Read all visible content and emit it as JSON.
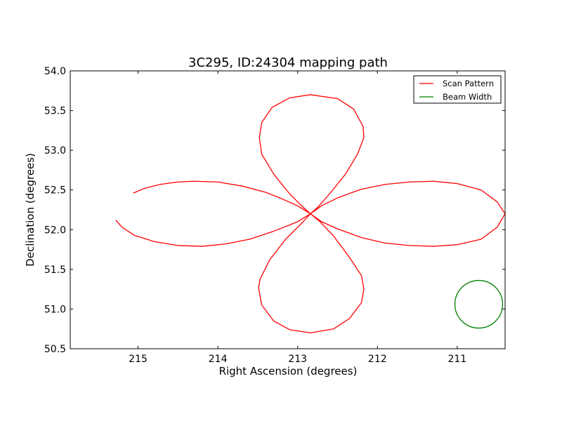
{
  "chart_data": {
    "type": "line",
    "title": "3C295, ID:24304 mapping path",
    "xlabel": "Right Ascension (degrees)",
    "ylabel": "Declination (degrees)",
    "xlim": [
      215.85,
      210.4
    ],
    "ylim": [
      50.5,
      54.0
    ],
    "x_ticks": [
      215,
      214,
      213,
      212,
      211
    ],
    "x_tick_labels": [
      "215",
      "214",
      "213",
      "212",
      "211"
    ],
    "y_ticks": [
      50.5,
      51.0,
      51.5,
      52.0,
      52.5,
      53.0,
      53.5,
      54.0
    ],
    "y_tick_labels": [
      "50.5",
      "51.0",
      "51.5",
      "52.0",
      "52.5",
      "53.0",
      "53.5",
      "54.0"
    ],
    "grid": false,
    "legend_position": "top-right",
    "series": [
      {
        "name": "Scan Pattern",
        "color": "#ff0000",
        "points": [
          [
            215.06,
            52.46
          ],
          [
            214.92,
            52.52
          ],
          [
            214.72,
            52.57
          ],
          [
            214.5,
            52.6
          ],
          [
            214.3,
            52.61
          ],
          [
            214.0,
            52.6
          ],
          [
            213.7,
            52.55
          ],
          [
            213.4,
            52.47
          ],
          [
            213.2,
            52.39
          ],
          [
            213.0,
            52.3
          ],
          [
            212.84,
            52.2
          ],
          [
            212.75,
            52.28
          ],
          [
            212.6,
            52.45
          ],
          [
            212.4,
            52.7
          ],
          [
            212.25,
            52.95
          ],
          [
            212.17,
            53.16
          ],
          [
            212.18,
            53.3
          ],
          [
            212.3,
            53.52
          ],
          [
            212.5,
            53.65
          ],
          [
            212.84,
            53.7
          ],
          [
            213.1,
            53.66
          ],
          [
            213.32,
            53.54
          ],
          [
            213.45,
            53.35
          ],
          [
            213.48,
            53.16
          ],
          [
            213.45,
            52.95
          ],
          [
            213.3,
            52.7
          ],
          [
            213.1,
            52.45
          ],
          [
            212.95,
            52.3
          ],
          [
            212.84,
            52.2
          ],
          [
            212.7,
            52.3
          ],
          [
            212.5,
            52.4
          ],
          [
            212.2,
            52.51
          ],
          [
            211.9,
            52.57
          ],
          [
            211.6,
            52.6
          ],
          [
            211.3,
            52.61
          ],
          [
            211.0,
            52.58
          ],
          [
            210.7,
            52.5
          ],
          [
            210.5,
            52.35
          ],
          [
            210.4,
            52.2
          ],
          [
            210.5,
            52.03
          ],
          [
            210.7,
            51.88
          ],
          [
            211.0,
            51.81
          ],
          [
            211.3,
            51.79
          ],
          [
            211.6,
            51.8
          ],
          [
            211.9,
            51.83
          ],
          [
            212.2,
            51.9
          ],
          [
            212.5,
            52.01
          ],
          [
            212.7,
            52.1
          ],
          [
            212.84,
            52.2
          ],
          [
            212.95,
            52.08
          ],
          [
            213.15,
            51.88
          ],
          [
            213.35,
            51.62
          ],
          [
            213.47,
            51.38
          ],
          [
            213.49,
            51.27
          ],
          [
            213.45,
            51.05
          ],
          [
            213.3,
            50.85
          ],
          [
            213.1,
            50.74
          ],
          [
            212.84,
            50.7
          ],
          [
            212.55,
            50.75
          ],
          [
            212.35,
            50.88
          ],
          [
            212.2,
            51.08
          ],
          [
            212.17,
            51.25
          ],
          [
            212.2,
            51.42
          ],
          [
            212.35,
            51.65
          ],
          [
            212.55,
            51.92
          ],
          [
            212.72,
            52.1
          ],
          [
            212.84,
            52.2
          ],
          [
            213.0,
            52.1
          ],
          [
            213.3,
            51.98
          ],
          [
            213.6,
            51.88
          ],
          [
            213.9,
            51.82
          ],
          [
            214.2,
            51.79
          ],
          [
            214.5,
            51.8
          ],
          [
            214.8,
            51.85
          ],
          [
            215.05,
            51.93
          ],
          [
            215.2,
            52.03
          ],
          [
            215.28,
            52.12
          ]
        ]
      },
      {
        "name": "Beam Width",
        "color": "#008000",
        "circle": {
          "center": [
            210.73,
            51.06
          ],
          "radius": 0.3
        }
      }
    ]
  }
}
